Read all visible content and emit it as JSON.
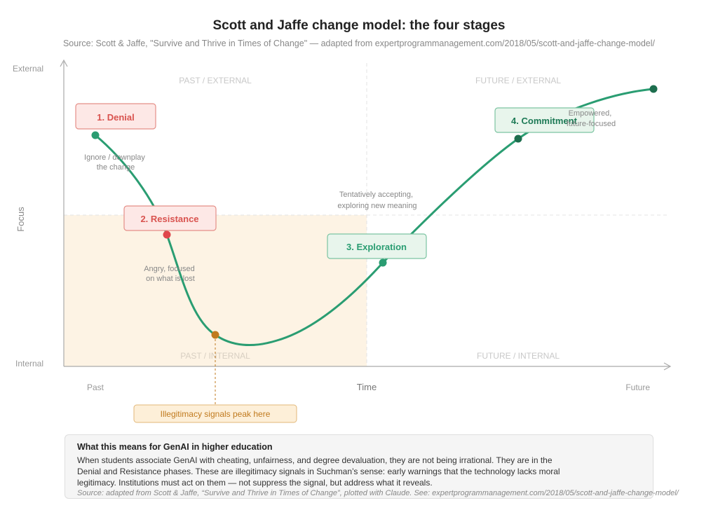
{
  "title": "Scott and Jaffe change model: the four stages",
  "subtitle": "Source: Scott & Jaffe, \"Survive and Thrive in Times of Change\" — adapted from expertprogrammanagement.com/2018/05/scott-and-jaffe-change-model/",
  "axes": {
    "y_label": "Focus",
    "y_top": "External",
    "y_bottom": "Internal",
    "x_label": "Time",
    "x_left": "Past",
    "x_right": "Future"
  },
  "quadrants": {
    "past_external": "PAST / EXTERNAL",
    "future_external": "FUTURE / EXTERNAL",
    "past_internal": "PAST / INTERNAL",
    "future_internal": "FUTURE / INTERNAL"
  },
  "stages": [
    {
      "label": "1. Denial",
      "note": [
        "Ignore / downplay",
        "the change"
      ],
      "color": "#d9534f"
    },
    {
      "label": "2. Resistance",
      "note": [
        "Angry, focused",
        "on what is lost"
      ],
      "color": "#d9534f"
    },
    {
      "label": "3. Exploration",
      "note": [
        "Tentatively accepting,",
        "exploring new meaning"
      ],
      "color": "#2a9d72"
    },
    {
      "label": "4. Commitment",
      "note": [
        "Empowered,",
        "future-focused"
      ],
      "color": "#1d7a56"
    }
  ],
  "callout": "Illegitimacy signals peak here",
  "info": {
    "heading": "What this means for GenAI in higher education",
    "body": "When students associate GenAI with cheating, unfairness, and degree devaluation, they are not being irrational. They are in the Denial and Resistance phases. These are illegitimacy signals in Suchman’s sense: early warnings that the technology lacks moral legitimacy. Institutions must act on them — not suppress the signal, but address what it reveals.",
    "source": "Source: adapted from Scott & Jaffe, “Survive and Thrive in Times of Change”, plotted with Claude. See: expertprogrammanagement.com/2018/05/scott-and-jaffe-change-model/"
  },
  "colors": {
    "curve": "#2a9d72",
    "denial_fill": "#fde8e6",
    "exploration_fill": "#e8f5ec",
    "callout_fill": "#fdefd8",
    "callout_point": "#c07a1e",
    "shaded_quadrant": "#fdf3e4"
  }
}
